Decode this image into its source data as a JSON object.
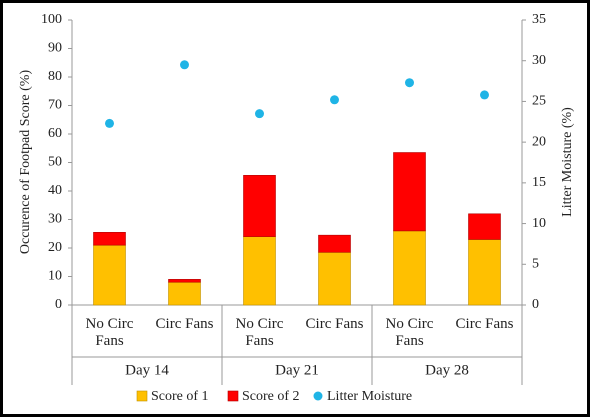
{
  "chart_data": {
    "type": "stacked_bar_scatter",
    "categories": [
      "No Circ Fans",
      "Circ Fans",
      "No Circ Fans",
      "Circ Fans",
      "No Circ Fans",
      "Circ Fans"
    ],
    "groups": [
      "Day 14",
      "Day 21",
      "Day 28"
    ],
    "ylabel": "Occurence of Footpad Score (%)",
    "y2label": "Litter Moisture (%)",
    "ylim": [
      0,
      100
    ],
    "yticks": [
      0,
      10,
      20,
      30,
      40,
      50,
      60,
      70,
      80,
      90,
      100
    ],
    "y2lim": [
      0,
      35
    ],
    "y2ticks": [
      0,
      5,
      10,
      15,
      20,
      25,
      30,
      35
    ],
    "series": [
      {
        "name": "Score of 1",
        "color": "#FFC000",
        "values": [
          21,
          8,
          24,
          18.5,
          26,
          23
        ]
      },
      {
        "name": "Score of 2",
        "color": "#FF0000",
        "values": [
          4.5,
          1,
          21.5,
          6,
          27.5,
          9
        ]
      },
      {
        "name": "Litter Moisture",
        "color": "#1FB4E6",
        "axis": "y2",
        "values": [
          22.3,
          29.5,
          23.5,
          25.2,
          27.3,
          25.8
        ]
      }
    ]
  }
}
